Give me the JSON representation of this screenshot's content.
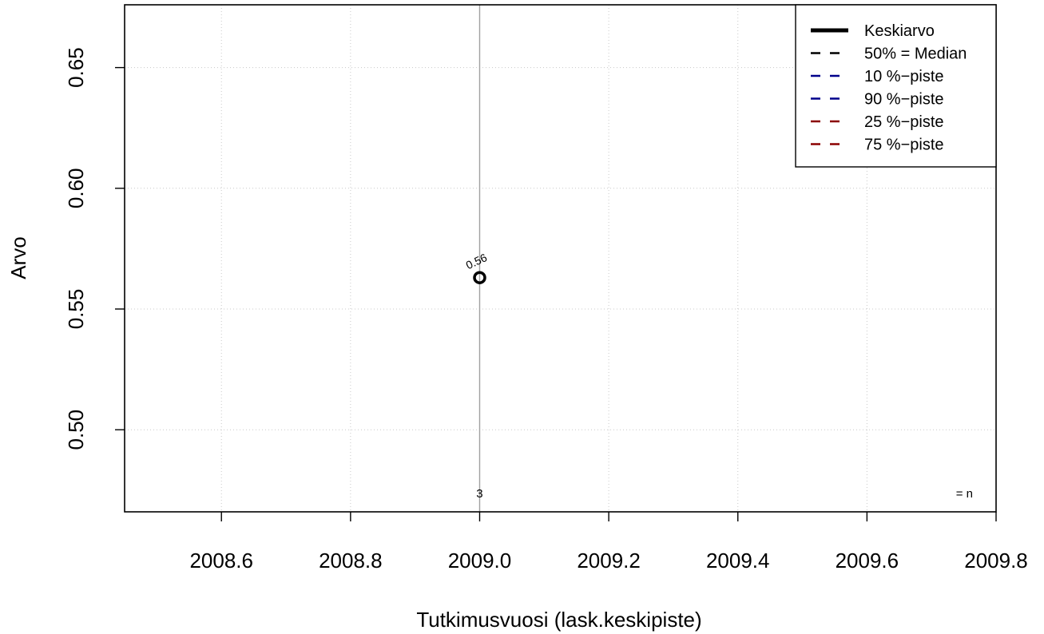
{
  "chart_data": {
    "type": "scatter",
    "xlabel": "Tutkimusvuosi (lask.keskipiste)",
    "ylabel": "Arvo",
    "xlim": [
      2008.45,
      2009.8
    ],
    "ylim": [
      0.466,
      0.676
    ],
    "x_ticks": [
      2008.6,
      2008.8,
      2009.0,
      2009.2,
      2009.4,
      2009.6,
      2009.8
    ],
    "x_tick_labels": [
      "2008.6",
      "2008.8",
      "2009.0",
      "2009.2",
      "2009.4",
      "2009.6",
      "2009.8"
    ],
    "y_ticks": [
      0.5,
      0.55,
      0.6,
      0.65
    ],
    "y_tick_labels": [
      "0.50",
      "0.55",
      "0.60",
      "0.65"
    ],
    "grid": true,
    "legend_position": "top-right",
    "series": [
      {
        "name": "Keskiarvo",
        "x": [
          2009.0
        ],
        "y": [
          0.563
        ],
        "point_labels": [
          "0.56"
        ]
      }
    ],
    "n_labels": [
      {
        "x": 2009.0,
        "label": "3"
      }
    ],
    "n_label_key": "= n",
    "legend": [
      {
        "label": "Keskiarvo",
        "color": "#000000",
        "style": "solid"
      },
      {
        "label": "50% = Median",
        "color": "#000000",
        "style": "dashed"
      },
      {
        "label": "10 %−piste",
        "color": "#00008b",
        "style": "dashed"
      },
      {
        "label": "90 %−piste",
        "color": "#00008b",
        "style": "dashed"
      },
      {
        "label": "25 %−piste",
        "color": "#8b0000",
        "style": "dashed"
      },
      {
        "label": "75 %−piste",
        "color": "#8b0000",
        "style": "dashed"
      }
    ]
  }
}
